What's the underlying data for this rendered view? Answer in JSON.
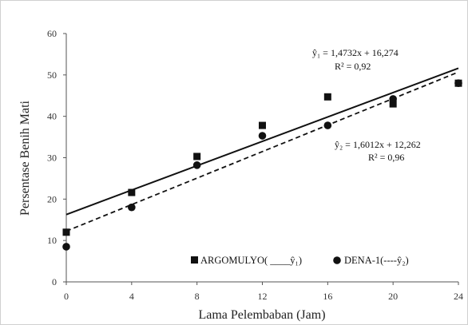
{
  "chart_data": {
    "type": "scatter",
    "xlabel": "Lama Pelembaban (Jam)",
    "ylabel": "Persentase Benih Mati",
    "xlim": [
      0,
      24
    ],
    "ylim": [
      0,
      60
    ],
    "x_ticks": [
      "0",
      "4",
      "8",
      "12",
      "16",
      "20",
      "24"
    ],
    "y_ticks": [
      "0",
      "10",
      "20",
      "30",
      "40",
      "50",
      "60"
    ],
    "grid": false,
    "legend_position": "bottom",
    "series": [
      {
        "name": "ARGOMULYO( ____ŷ₁)",
        "marker": "square",
        "x": [
          0,
          4,
          8,
          12,
          16,
          20,
          24
        ],
        "y": [
          12.0,
          21.6,
          30.3,
          37.8,
          44.7,
          43.0,
          48.0
        ],
        "trendline": {
          "slope": 1.4732,
          "intercept": 16.274,
          "style": "solid",
          "equation": "ŷ₁ = 1,4732x + 16,274",
          "r2": "R² = 0,92"
        }
      },
      {
        "name": "DENA-1(----ŷ₂)",
        "marker": "circle",
        "x": [
          0,
          4,
          8,
          12,
          16,
          20,
          24
        ],
        "y": [
          8.5,
          18.0,
          28.2,
          35.3,
          37.8,
          44.2,
          48.0
        ],
        "trendline": {
          "slope": 1.6012,
          "intercept": 12.262,
          "style": "dashed",
          "equation": "ŷ₂ = 1,6012x + 12,262",
          "r2": "R² = 0,96"
        }
      }
    ],
    "colors": {
      "marker": "#111111",
      "line": "#111111",
      "axis": "#555555"
    }
  }
}
